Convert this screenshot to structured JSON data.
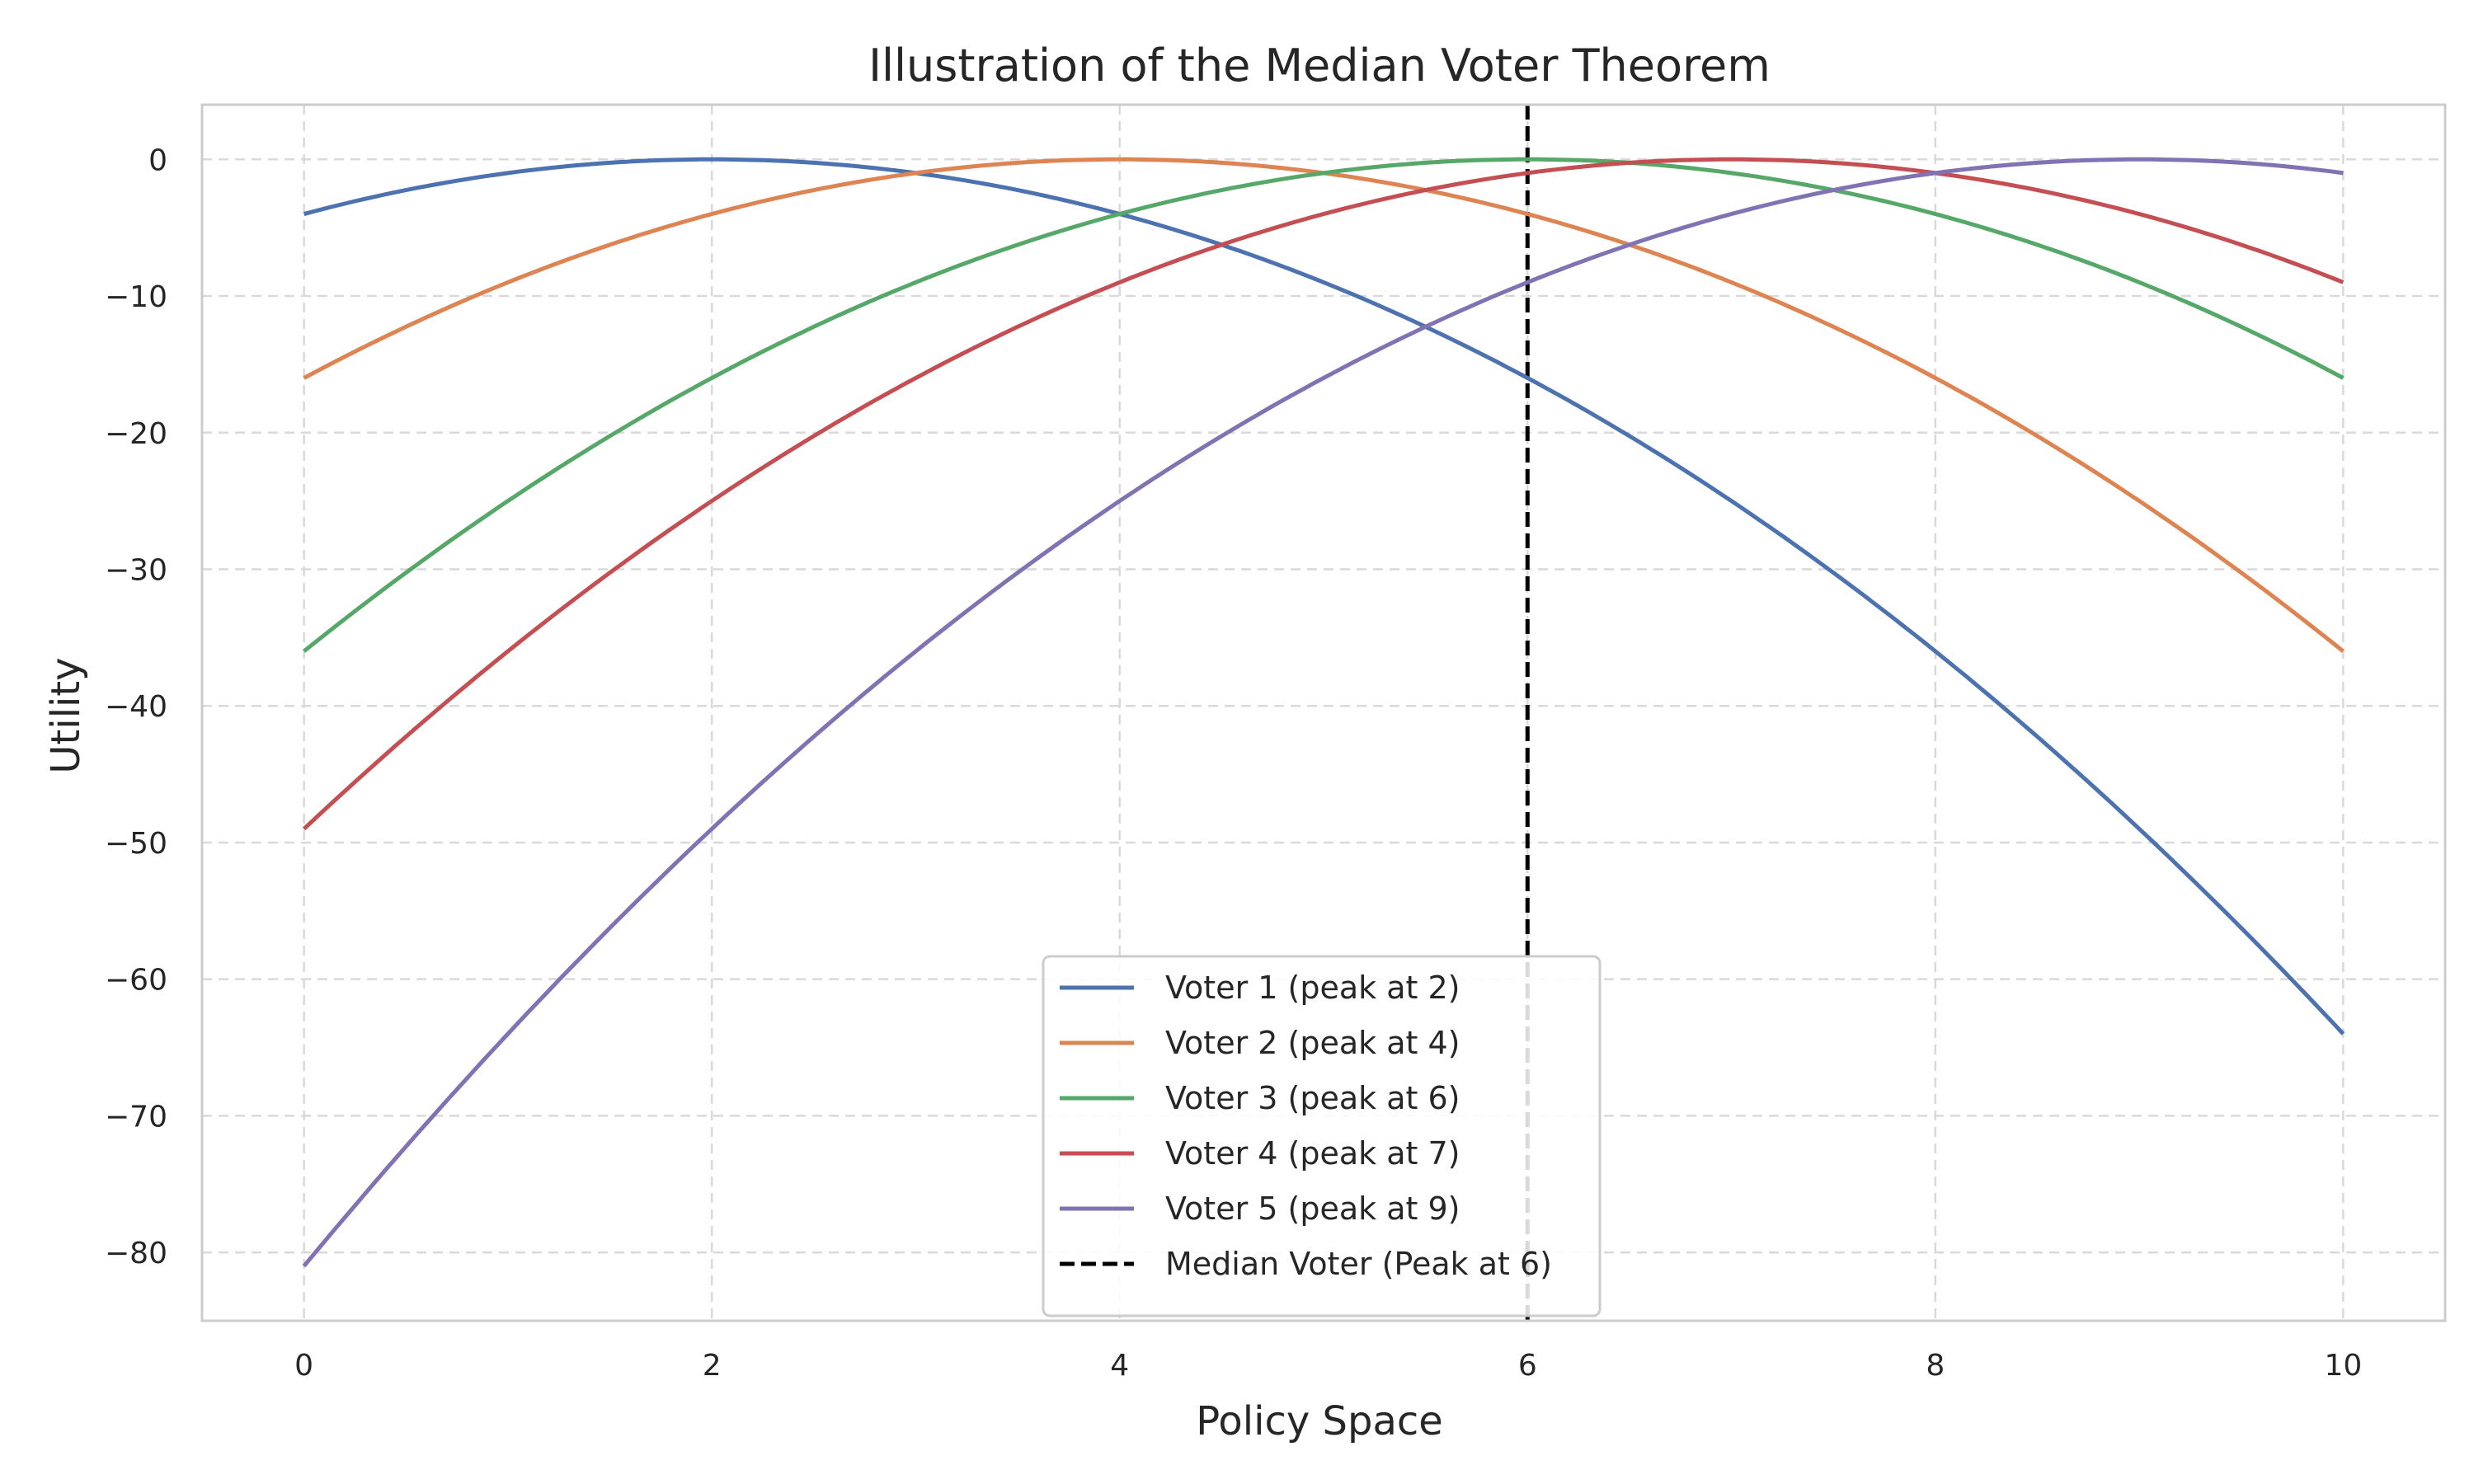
{
  "chart_data": {
    "type": "line",
    "title": "Illustration of the Median Voter Theorem",
    "xlabel": "Policy Space",
    "ylabel": "Utility",
    "xlim": [
      -0.5,
      10.5
    ],
    "ylim": [
      -85,
      4
    ],
    "xticks": [
      0,
      2,
      4,
      6,
      8,
      10
    ],
    "xtick_labels": [
      "0",
      "2",
      "4",
      "6",
      "8",
      "10"
    ],
    "yticks": [
      0,
      -10,
      -20,
      -30,
      -40,
      -50,
      -60,
      -70,
      -80
    ],
    "ytick_labels": [
      "0",
      "−10",
      "−20",
      "−30",
      "−40",
      "−50",
      "−60",
      "−70",
      "−80"
    ],
    "grid": true,
    "legend_position": "bottom-center",
    "x": [
      0,
      0.5,
      1,
      1.5,
      2,
      2.5,
      3,
      3.5,
      4,
      4.5,
      5,
      5.5,
      6,
      6.5,
      7,
      7.5,
      8,
      8.5,
      9,
      9.5,
      10
    ],
    "series": [
      {
        "name": "Voter 1 (peak at 2)",
        "color": "#4c72b0",
        "style": "solid",
        "values": [
          -4,
          -2.25,
          -1,
          -0.25,
          0,
          -0.25,
          -1,
          -2.25,
          -4,
          -6.25,
          -9,
          -12.25,
          -16,
          -20.25,
          -25,
          -30.25,
          -36,
          -42.25,
          -49,
          -56.25,
          -64
        ]
      },
      {
        "name": "Voter 2 (peak at 4)",
        "color": "#dd8452",
        "style": "solid",
        "values": [
          -16,
          -12.25,
          -9,
          -6.25,
          -4,
          -2.25,
          -1,
          -0.25,
          0,
          -0.25,
          -1,
          -2.25,
          -4,
          -6.25,
          -9,
          -12.25,
          -16,
          -20.25,
          -25,
          -30.25,
          -36
        ]
      },
      {
        "name": "Voter 3 (peak at 6)",
        "color": "#55a868",
        "style": "solid",
        "values": [
          -36,
          -30.25,
          -25,
          -20.25,
          -16,
          -12.25,
          -9,
          -6.25,
          -4,
          -2.25,
          -1,
          -0.25,
          0,
          -0.25,
          -1,
          -2.25,
          -4,
          -6.25,
          -9,
          -12.25,
          -16
        ]
      },
      {
        "name": "Voter 4 (peak at 7)",
        "color": "#c44e52",
        "style": "solid",
        "values": [
          -49,
          -42.25,
          -36,
          -30.25,
          -25,
          -20.25,
          -16,
          -12.25,
          -9,
          -6.25,
          -4,
          -2.25,
          -1,
          -0.25,
          0,
          -0.25,
          -1,
          -2.25,
          -4,
          -6.25,
          -9
        ]
      },
      {
        "name": "Voter 5 (peak at 9)",
        "color": "#8172b3",
        "style": "solid",
        "values": [
          -81,
          -72.25,
          -64,
          -56.25,
          -49,
          -42.25,
          -36,
          -30.25,
          -25,
          -20.25,
          -16,
          -12.25,
          -9,
          -6.25,
          -4,
          -2.25,
          -1,
          -0.25,
          0,
          -0.25,
          -1
        ]
      }
    ],
    "vline": {
      "name": "Median Voter (Peak at 6)",
      "x": 6,
      "color": "#000000",
      "style": "dashed"
    }
  }
}
